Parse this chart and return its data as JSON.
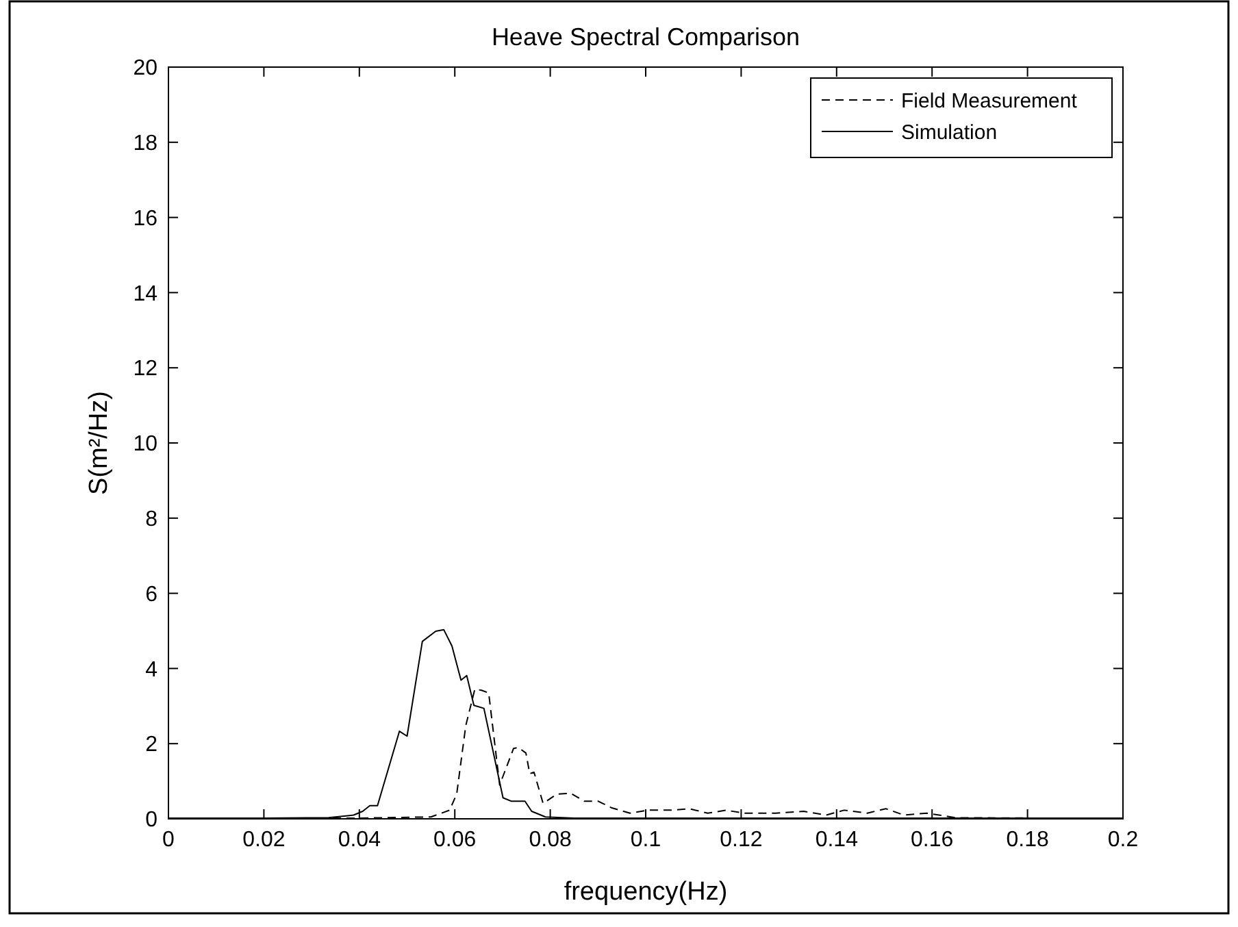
{
  "chart_data": {
    "type": "line",
    "title": "Heave Spectral Comparison",
    "xlabel": "frequency(Hz)",
    "ylabel": "S(m²/Hz)",
    "xlim": [
      0,
      0.2
    ],
    "ylim": [
      0,
      20
    ],
    "xticks": [
      0,
      0.02,
      0.04,
      0.06,
      0.08,
      {
        "value": 0.1,
        "label": "0.1"
      },
      0.12,
      0.14,
      0.16,
      0.18,
      0.2
    ],
    "yticks": [
      0,
      2,
      4,
      6,
      8,
      10,
      12,
      14,
      16,
      18,
      20
    ],
    "grid": false,
    "legend": "top right",
    "series": [
      {
        "name": "Field Measurement",
        "color": "#000000",
        "line_style": "dashed",
        "x": [
          0,
          0.02,
          0.04,
          0.055,
          0.0589,
          0.0604,
          0.0623,
          0.0642,
          0.0656,
          0.0671,
          0.0694,
          0.0723,
          0.0733,
          0.0749,
          0.0757,
          0.0766,
          0.0785,
          0.0814,
          0.0843,
          0.0871,
          0.09,
          0.0929,
          0.0967,
          0.1005,
          0.1053,
          0.1091,
          0.113,
          0.1168,
          0.1206,
          0.1273,
          0.1331,
          0.1378,
          0.1416,
          0.1464,
          0.1503,
          0.1541,
          0.1589,
          0.165,
          0.18,
          0.2
        ],
        "values": [
          0.02,
          0.02,
          0.02,
          0.05,
          0.23,
          0.66,
          2.48,
          3.45,
          3.42,
          3.35,
          0.9,
          1.87,
          1.9,
          1.75,
          1.2,
          1.24,
          0.41,
          0.66,
          0.68,
          0.47,
          0.47,
          0.29,
          0.15,
          0.23,
          0.23,
          0.27,
          0.15,
          0.23,
          0.15,
          0.15,
          0.2,
          0.1,
          0.23,
          0.15,
          0.27,
          0.1,
          0.15,
          0.03,
          0.02,
          0.02
        ]
      },
      {
        "name": "Simulation",
        "color": "#000000",
        "line_style": "solid",
        "x": [
          0,
          0.02,
          0.0336,
          0.0388,
          0.0407,
          0.0422,
          0.0438,
          0.0484,
          0.05,
          0.0532,
          0.056,
          0.0577,
          0.0594,
          0.0613,
          0.0625,
          0.064,
          0.0661,
          0.0701,
          0.0718,
          0.0747,
          0.0761,
          0.079,
          0.085,
          0.1,
          0.15,
          0.2
        ],
        "values": [
          0.02,
          0.02,
          0.03,
          0.1,
          0.2,
          0.35,
          0.35,
          2.33,
          2.2,
          4.72,
          4.99,
          5.03,
          4.6,
          3.69,
          3.81,
          3.02,
          2.94,
          0.56,
          0.47,
          0.47,
          0.2,
          0.05,
          0.02,
          0.02,
          0.02,
          0.02
        ]
      }
    ]
  }
}
